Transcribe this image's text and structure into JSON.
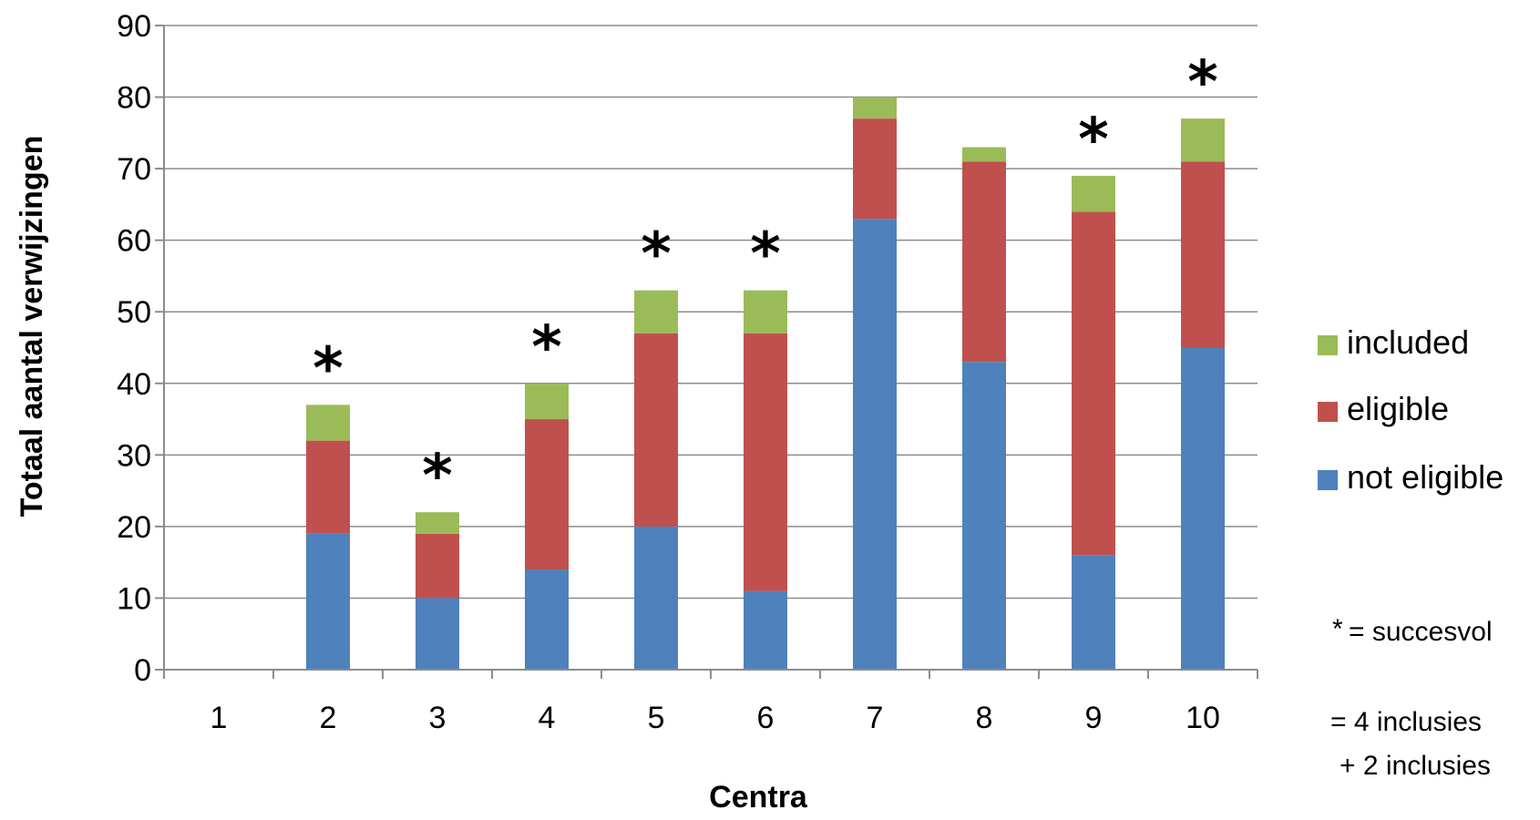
{
  "chart_data": {
    "type": "bar",
    "stacked": true,
    "title": "",
    "xlabel": "Centra",
    "ylabel": "Totaal aantal verwijzingen",
    "ylim": [
      0,
      90
    ],
    "y_ticks": [
      0,
      10,
      20,
      30,
      40,
      50,
      60,
      70,
      80,
      90
    ],
    "grid": true,
    "legend_position": "right",
    "categories": [
      "1",
      "2",
      "3",
      "4",
      "5",
      "6",
      "7",
      "8",
      "9",
      "10"
    ],
    "series": [
      {
        "name": "not eligible",
        "color": "#4F81BD",
        "values": [
          0,
          19,
          10,
          14,
          20,
          11,
          63,
          43,
          16,
          45
        ]
      },
      {
        "name": "eligible",
        "color": "#C0504D",
        "values": [
          0,
          13,
          9,
          21,
          27,
          36,
          14,
          28,
          48,
          26
        ]
      },
      {
        "name": "included",
        "color": "#9BBB59",
        "values": [
          0,
          5,
          3,
          5,
          6,
          6,
          3,
          2,
          5,
          6
        ]
      }
    ],
    "legend_order": [
      "included",
      "eligible",
      "not eligible"
    ],
    "annotations": {
      "star_symbol": "*",
      "star_categories": [
        "2",
        "3",
        "4",
        "5",
        "6",
        "9",
        "10"
      ],
      "footnote_star": "*",
      "footnote_star_label": "= succesvol",
      "footnote_line1": "= 4 inclusies",
      "footnote_line2": "+ 2 inclusies"
    }
  }
}
